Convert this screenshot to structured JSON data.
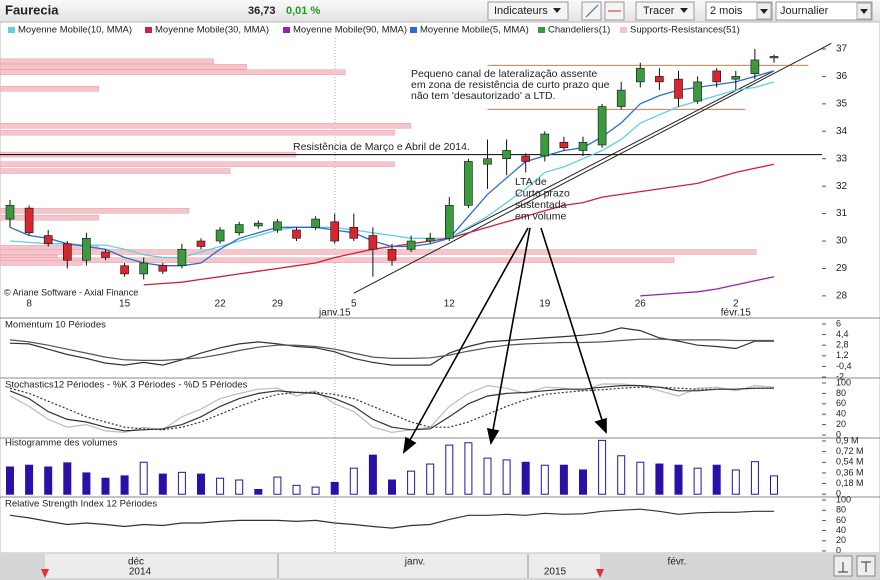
{
  "toolbar": {
    "symbol": "Faurecia",
    "price": "36,73",
    "change": "0,01 %",
    "buttons": [
      "Indicateurs",
      "Tracer"
    ],
    "selects": [
      "2 mois",
      "Journalier"
    ]
  },
  "chart_data": [
    {
      "type": "candlestick",
      "credit": "© Ariane Software - Axial Finance",
      "categories": [
        null,
        "8",
        null,
        null,
        null,
        null,
        "15",
        null,
        null,
        null,
        null,
        "22",
        null,
        null,
        "29",
        null,
        null,
        null,
        "5",
        null,
        null,
        null,
        null,
        "12",
        null,
        null,
        null,
        null,
        "19",
        null,
        null,
        null,
        null,
        "26",
        null,
        null,
        null,
        null,
        "2",
        null,
        null
      ],
      "x_sublabels": [
        null,
        null,
        null,
        null,
        null,
        null,
        null,
        null,
        null,
        null,
        null,
        null,
        null,
        null,
        null,
        null,
        null,
        null,
        "janv.15",
        null,
        null,
        null,
        null,
        null,
        null,
        null,
        null,
        null,
        null,
        null,
        null,
        null,
        null,
        null,
        null,
        null,
        null,
        null,
        "févr.15",
        null,
        null
      ],
      "candles": {
        "name": "Chandeliers(1)",
        "up_color": "#3a9b3e",
        "down_color": "#d9262e",
        "open": [
          30.8,
          31.2,
          30.2,
          29.9,
          29.3,
          29.6,
          29.1,
          28.8,
          29.1,
          29.1,
          30.0,
          30.0,
          30.3,
          30.55,
          30.4,
          30.4,
          30.5,
          30.7,
          30.5,
          30.2,
          29.7,
          29.7,
          30.0,
          30.1,
          31.3,
          32.8,
          33.0,
          33.1,
          33.1,
          33.6,
          33.3,
          33.5,
          34.9,
          35.8,
          36.0,
          35.9,
          35.1,
          36.2,
          35.9,
          36.1,
          36.7
        ],
        "high": [
          31.5,
          31.3,
          30.4,
          30.0,
          30.3,
          29.7,
          29.2,
          29.4,
          29.2,
          29.9,
          30.1,
          30.5,
          30.7,
          30.75,
          30.8,
          30.5,
          30.9,
          31.0,
          31.0,
          30.5,
          29.9,
          30.2,
          30.3,
          31.6,
          33.0,
          33.7,
          33.7,
          33.2,
          34.0,
          33.8,
          33.8,
          35.0,
          35.8,
          36.5,
          36.3,
          36.2,
          36.0,
          36.3,
          36.2,
          37.0,
          36.8
        ],
        "low": [
          30.5,
          30.2,
          29.8,
          29.0,
          29.1,
          29.3,
          28.7,
          28.6,
          28.8,
          29.0,
          29.7,
          29.9,
          30.2,
          30.45,
          30.3,
          30.0,
          30.4,
          29.9,
          30.0,
          28.7,
          29.1,
          29.6,
          29.9,
          30.0,
          31.2,
          31.9,
          32.4,
          32.5,
          32.9,
          33.3,
          33.1,
          33.4,
          34.8,
          35.6,
          35.5,
          34.9,
          35.0,
          35.6,
          35.5,
          35.9,
          36.5
        ],
        "close": [
          31.3,
          30.3,
          29.9,
          29.3,
          30.1,
          29.4,
          28.8,
          29.2,
          28.9,
          29.7,
          29.8,
          30.4,
          30.6,
          30.65,
          30.7,
          30.1,
          30.8,
          30.0,
          30.1,
          29.7,
          29.3,
          30.0,
          30.1,
          31.3,
          32.9,
          33.0,
          33.3,
          32.9,
          33.9,
          33.4,
          33.6,
          34.9,
          35.5,
          36.3,
          35.8,
          35.2,
          35.8,
          35.8,
          36.0,
          36.6,
          36.73
        ]
      },
      "series": [
        {
          "name": "Moyenne Mobile(10, MMA)",
          "color": "#5fd0e6",
          "values": [
            30.0,
            29.95,
            29.9,
            29.9,
            29.85,
            29.85,
            29.7,
            29.5,
            29.4,
            29.4,
            29.6,
            29.8,
            30.0,
            30.2,
            30.4,
            30.5,
            30.5,
            30.5,
            30.4,
            30.3,
            30.2,
            30.1,
            30.1,
            30.1,
            30.5,
            30.9,
            31.4,
            31.9,
            32.5,
            32.7,
            33.0,
            33.3,
            33.7,
            34.3,
            34.6,
            34.9,
            35.1,
            35.3,
            35.5,
            35.6,
            35.8
          ]
        },
        {
          "name": "Moyenne Mobile(30, MMA)",
          "color": "#d0203c",
          "values": [
            null,
            null,
            null,
            null,
            null,
            null,
            null,
            28.4,
            28.45,
            28.5,
            28.6,
            28.7,
            28.8,
            28.9,
            29.0,
            29.1,
            29.2,
            29.4,
            29.55,
            29.7,
            29.8,
            29.9,
            30.0,
            30.1,
            30.3,
            30.5,
            30.7,
            30.9,
            31.1,
            31.3,
            31.4,
            31.6,
            31.7,
            31.8,
            31.9,
            32.0,
            32.1,
            32.3,
            32.5,
            32.65,
            32.8
          ]
        },
        {
          "name": "Moyenne Mobile(90, MMA)",
          "color": "#9b1fb5",
          "values": [
            null,
            null,
            null,
            null,
            null,
            null,
            null,
            null,
            null,
            null,
            null,
            null,
            null,
            null,
            null,
            null,
            null,
            null,
            null,
            null,
            null,
            null,
            null,
            null,
            null,
            null,
            null,
            null,
            null,
            null,
            null,
            null,
            null,
            28.0,
            28.05,
            28.1,
            28.15,
            28.25,
            28.4,
            28.55,
            28.7
          ]
        },
        {
          "name": "Moyenne Mobile(5, MMA)",
          "color": "#2a6fd0",
          "values": [
            30.5,
            30.2,
            30.1,
            29.9,
            29.8,
            29.7,
            29.4,
            29.2,
            29.1,
            29.1,
            29.2,
            29.7,
            30.1,
            30.3,
            30.5,
            30.5,
            30.5,
            30.4,
            30.3,
            30.0,
            29.8,
            29.8,
            29.9,
            30.1,
            30.9,
            31.7,
            32.3,
            32.9,
            33.1,
            33.3,
            33.4,
            33.8,
            34.3,
            35.0,
            35.3,
            35.5,
            35.6,
            35.7,
            35.8,
            36.0,
            36.2
          ]
        }
      ],
      "supports": {
        "name": "Supports-Resistances(51)",
        "color": "#f6c4cb",
        "levels": [
          36.55,
          36.35,
          36.15,
          35.55,
          34.2,
          33.95,
          33.15,
          32.8,
          32.55,
          31.1,
          30.85,
          29.75,
          29.6,
          29.4,
          29.3,
          29.2
        ],
        "strength": [
          26,
          30,
          42,
          12,
          50,
          48,
          36,
          48,
          28,
          23,
          12,
          12,
          92,
          7,
          82,
          10
        ]
      },
      "reference_lines": [
        {
          "value": 33.15,
          "color": "#000000"
        }
      ],
      "segments": [
        {
          "x": [
            25,
            41.8
          ],
          "y": [
            36.4,
            36.4
          ],
          "color": "#e07a4a"
        },
        {
          "x": [
            25,
            38.5
          ],
          "y": [
            34.8,
            34.8
          ],
          "color": "#e07a4a"
        },
        {
          "x": [
            18,
            43
          ],
          "y": [
            28.1,
            37.2
          ],
          "color": "#222222"
        },
        {
          "x": [
            23,
            40
          ],
          "y": [
            30.1,
            36.2
          ],
          "color": "#222222"
        }
      ],
      "annotations": [
        [
          "Pequeno canal de lateralização assente",
          "em zona de resistência de curto prazo que",
          "não tem 'desautorizado' a LTD."
        ],
        [
          "Resistência de Março e Abril de 2014."
        ],
        [
          "LTA de",
          "Curto  prazo",
          "sustentada",
          "em volume"
        ]
      ],
      "ylim": [
        27.85,
        37.4
      ],
      "yticks": [
        28,
        29,
        30,
        31,
        32,
        33,
        34,
        35,
        36,
        37
      ]
    },
    {
      "type": "line",
      "title": "Momentum 10 Périodes",
      "series": [
        {
          "color": "#333333",
          "values": [
            3.1,
            3.0,
            2.2,
            1.4,
            0.8,
            0.1,
            -0.2,
            0.2,
            -0.2,
            0.6,
            1.6,
            2.4,
            3.0,
            3.3,
            3.0,
            2.6,
            2.4,
            1.8,
            0.8,
            0.2,
            -0.2,
            -0.2,
            -0.2,
            1.6,
            2.6,
            3.3,
            3.5,
            3.7,
            3.9,
            4.1,
            4.3,
            4.6,
            5.4,
            5.0,
            3.9,
            3.4,
            2.8,
            2.6,
            2.3,
            3.4,
            3.4
          ]
        },
        {
          "color": "#555555",
          "values": [
            3.6,
            3.3,
            2.8,
            2.2,
            1.6,
            1.0,
            0.6,
            0.5,
            0.5,
            0.7,
            0.9,
            1.4,
            2.0,
            2.5,
            2.8,
            2.8,
            2.6,
            2.2,
            1.6,
            1.0,
            0.8,
            0.8,
            0.9,
            1.3,
            1.9,
            2.4,
            2.8,
            3.0,
            3.1,
            3.2,
            3.2,
            3.3,
            3.5,
            3.7,
            3.7,
            3.6,
            3.6,
            3.6,
            3.5,
            3.5,
            3.5
          ]
        }
      ],
      "ylim": [
        -2.15,
        6.9
      ],
      "yticks": [
        6,
        {
          "value": 4.4,
          "label": "4,4"
        },
        {
          "value": 2.8,
          "label": "2,8"
        },
        {
          "value": 1.2,
          "label": "1,2"
        },
        {
          "value": -0.4,
          "label": "-0,4"
        },
        -2
      ]
    },
    {
      "type": "line",
      "title": "Stochastics12 Périodes  -  %K 3 Périodes  -  %D 5 Périodes",
      "series": [
        {
          "color": "#bbbbbb",
          "dash": false,
          "values": [
            75,
            55,
            30,
            15,
            20,
            8,
            5,
            15,
            10,
            35,
            50,
            70,
            80,
            88,
            90,
            75,
            85,
            60,
            45,
            15,
            5,
            10,
            15,
            55,
            80,
            95,
            90,
            80,
            92,
            90,
            85,
            98,
            98,
            95,
            85,
            75,
            90,
            92,
            85,
            95,
            92
          ]
        },
        {
          "color": "#333333",
          "dash": false,
          "values": [
            85,
            70,
            45,
            30,
            25,
            15,
            8,
            10,
            12,
            20,
            35,
            55,
            70,
            80,
            85,
            82,
            80,
            70,
            55,
            30,
            15,
            10,
            12,
            35,
            60,
            75,
            80,
            82,
            85,
            88,
            88,
            92,
            95,
            95,
            92,
            85,
            85,
            88,
            88,
            90,
            90
          ]
        },
        {
          "color": "#333333",
          "dash": true,
          "values": [
            90,
            80,
            65,
            50,
            35,
            25,
            15,
            12,
            10,
            15,
            25,
            40,
            55,
            68,
            78,
            82,
            82,
            78,
            70,
            55,
            40,
            25,
            15,
            15,
            25,
            40,
            55,
            68,
            78,
            82,
            85,
            87,
            90,
            92,
            92,
            90,
            88,
            88,
            88,
            90,
            90
          ]
        }
      ],
      "ylim": [
        -3.8,
        109.6
      ],
      "yticks": [
        100,
        80,
        60,
        40,
        20,
        0
      ]
    },
    {
      "type": "bar",
      "title": "Histogramme des volumes",
      "color": "#2b10a8",
      "values": [
        0.46,
        0.49,
        0.46,
        0.53,
        0.36,
        0.27,
        0.31,
        0.54,
        0.34,
        0.37,
        0.34,
        0.27,
        0.24,
        0.08,
        0.29,
        0.15,
        0.12,
        0.2,
        0.44,
        0.66,
        0.24,
        0.39,
        0.51,
        0.83,
        0.87,
        0.61,
        0.58,
        0.54,
        0.49,
        0.49,
        0.41,
        0.91,
        0.65,
        0.54,
        0.51,
        0.49,
        0.44,
        0.49,
        0.41,
        0.55,
        0.31
      ],
      "filled": [
        true,
        true,
        true,
        true,
        true,
        true,
        true,
        false,
        true,
        false,
        true,
        false,
        false,
        true,
        false,
        false,
        false,
        true,
        false,
        true,
        true,
        false,
        false,
        false,
        false,
        false,
        false,
        true,
        false,
        true,
        true,
        false,
        false,
        false,
        true,
        true,
        false,
        true,
        false,
        false,
        false
      ],
      "ylim": [
        -0.03,
        0.95
      ],
      "yticks": [
        {
          "value": 0.9,
          "label": "0,9 M"
        },
        {
          "value": 0.72,
          "label": "0,72 M"
        },
        {
          "value": 0.54,
          "label": "0,54 M"
        },
        {
          "value": 0.36,
          "label": "0,36 M"
        },
        {
          "value": 0.18,
          "label": "0,18 M"
        },
        0
      ]
    },
    {
      "type": "line",
      "title": "Relative Strength Index 12 Périodes",
      "series": [
        {
          "color": "#333333",
          "values": [
            70,
            65,
            58,
            52,
            55,
            52,
            48,
            52,
            50,
            55,
            55,
            58,
            60,
            60,
            60,
            58,
            60,
            55,
            52,
            48,
            45,
            50,
            52,
            62,
            70,
            70,
            72,
            70,
            74,
            72,
            73,
            78,
            80,
            82,
            78,
            72,
            75,
            76,
            76,
            78,
            78
          ]
        }
      ],
      "ylim": [
        -2,
        106
      ],
      "yticks": [
        100,
        80,
        60,
        40,
        20,
        0
      ]
    }
  ],
  "navigator": {
    "labels": [
      "déc",
      "2014",
      "janv.",
      "2015",
      "févr."
    ]
  }
}
